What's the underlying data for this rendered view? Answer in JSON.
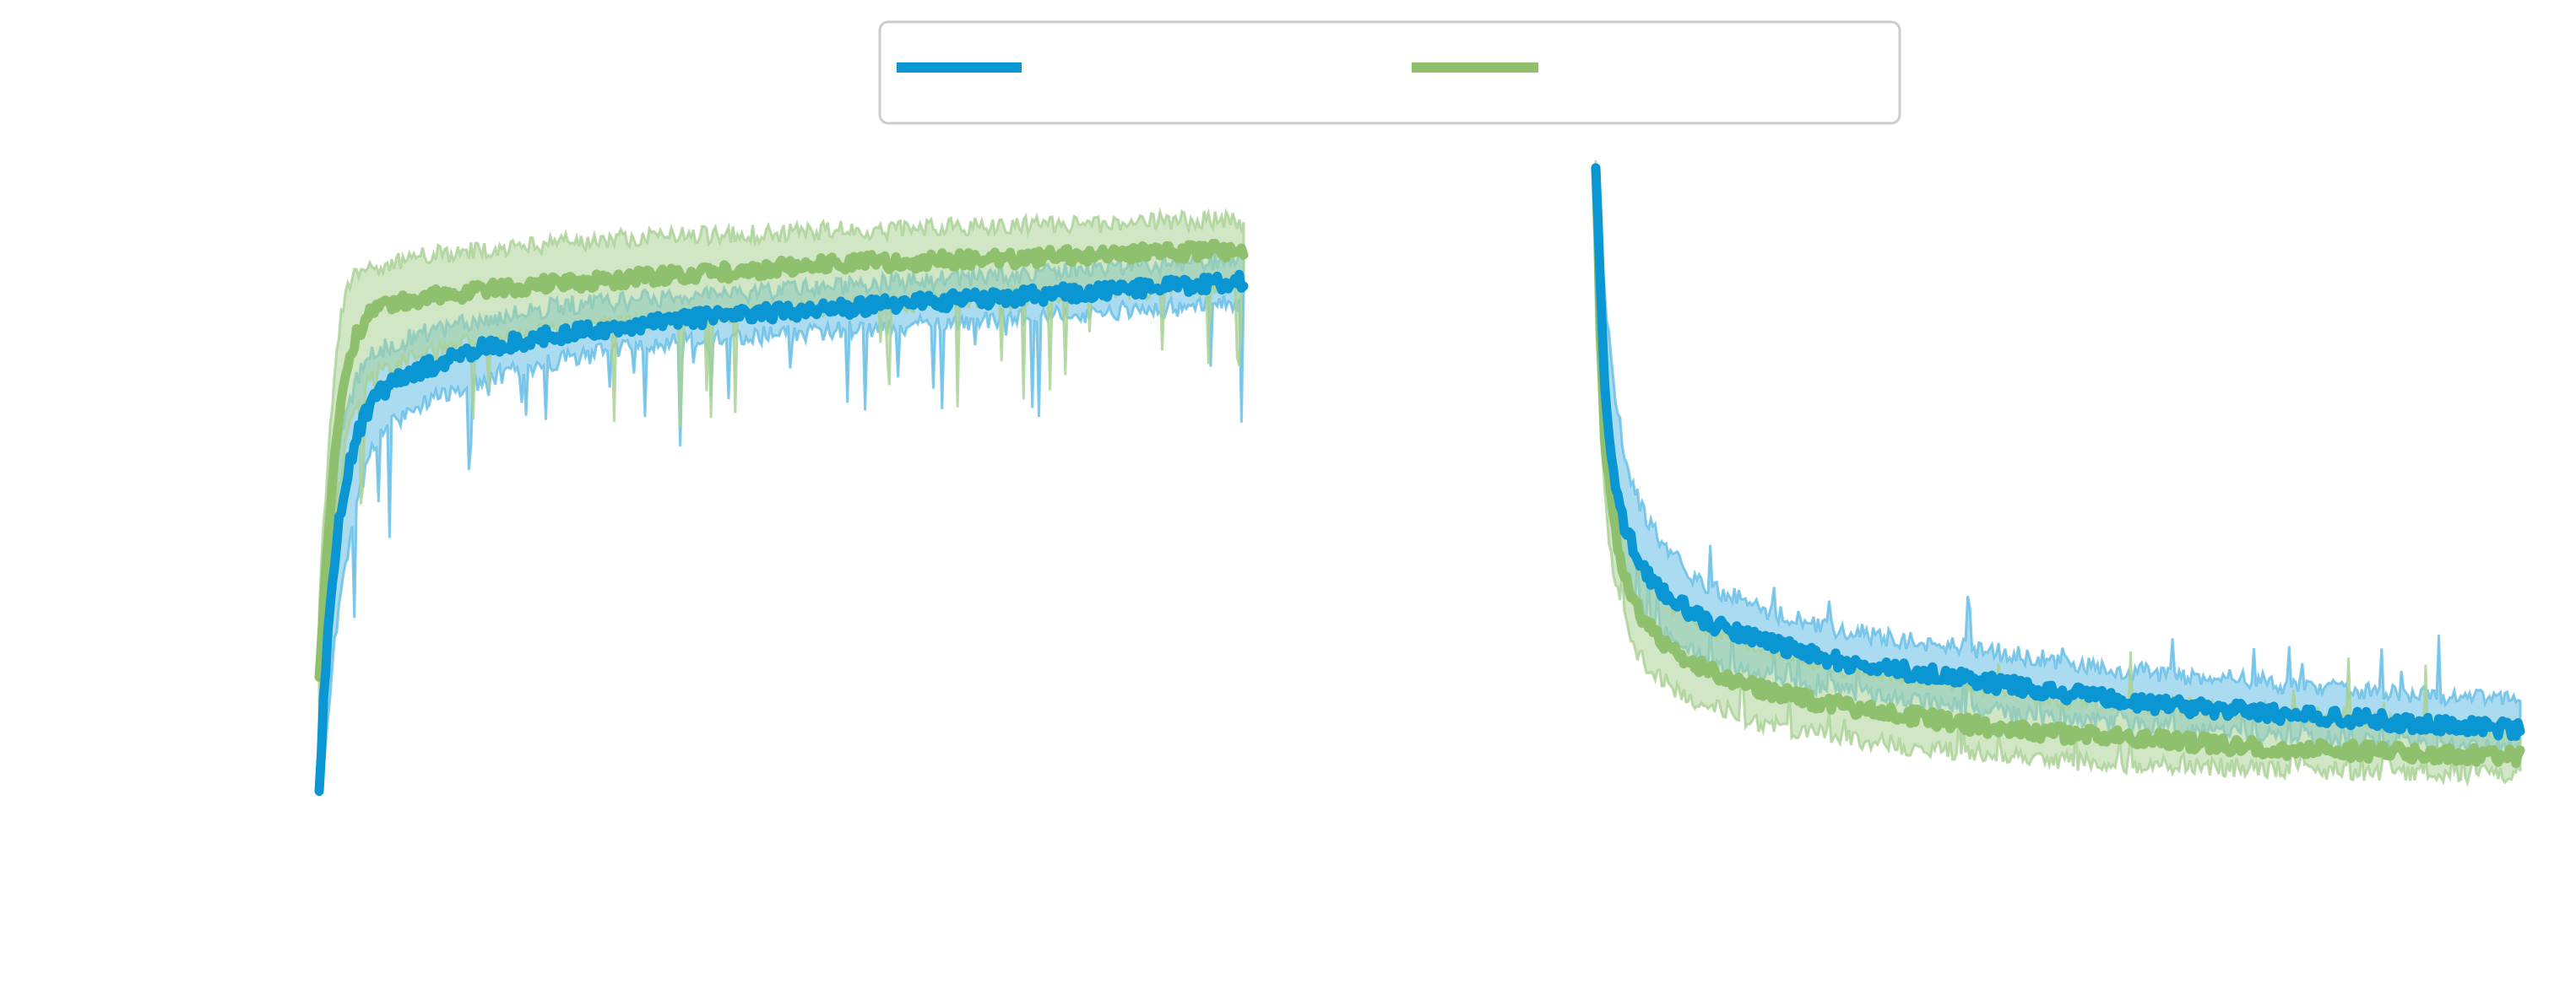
{
  "figure": {
    "legend": {
      "placement": "top-center",
      "entries": [
        {
          "name": "",
          "color": "#0a96d2"
        },
        {
          "name": "",
          "color": "#8fc06d"
        }
      ]
    },
    "colors": {
      "blue_line": "#0a96d2",
      "blue_band": "#64bde6",
      "green_line": "#8fc06d",
      "green_band": "#a9d195"
    }
  },
  "chart_data": [
    {
      "type": "line",
      "title": "",
      "xlabel": "",
      "ylabel": "",
      "grid": false,
      "xlim": [
        0,
        100
      ],
      "ylim": [
        0,
        1
      ],
      "x_tick_labels": [],
      "y_tick_labels": [],
      "series": [
        {
          "color": "#0a96d2",
          "band": true,
          "x": [
            0,
            0.5,
            1,
            2,
            3,
            4,
            5,
            6,
            8,
            10,
            12,
            15,
            18,
            22,
            26,
            30,
            35,
            40,
            45,
            50,
            55,
            60,
            65,
            70,
            75,
            80,
            85,
            90,
            95,
            100
          ],
          "mean": [
            0.0,
            0.15,
            0.27,
            0.42,
            0.5,
            0.56,
            0.6,
            0.625,
            0.65,
            0.665,
            0.675,
            0.69,
            0.705,
            0.715,
            0.725,
            0.733,
            0.74,
            0.75,
            0.755,
            0.76,
            0.765,
            0.77,
            0.775,
            0.78,
            0.785,
            0.79,
            0.795,
            0.8,
            0.805,
            0.81
          ],
          "lower": [
            0.0,
            0.05,
            0.14,
            0.28,
            0.37,
            0.45,
            0.51,
            0.55,
            0.585,
            0.605,
            0.62,
            0.64,
            0.655,
            0.67,
            0.685,
            0.695,
            0.705,
            0.715,
            0.72,
            0.725,
            0.73,
            0.735,
            0.74,
            0.745,
            0.75,
            0.755,
            0.76,
            0.765,
            0.77,
            0.775
          ],
          "upper": [
            0.0,
            0.28,
            0.4,
            0.54,
            0.61,
            0.65,
            0.68,
            0.695,
            0.71,
            0.72,
            0.73,
            0.74,
            0.75,
            0.76,
            0.77,
            0.775,
            0.78,
            0.785,
            0.79,
            0.795,
            0.8,
            0.805,
            0.81,
            0.815,
            0.82,
            0.825,
            0.83,
            0.835,
            0.84,
            0.845
          ]
        },
        {
          "color": "#8fc06d",
          "band": true,
          "x": [
            0,
            0.5,
            1,
            2,
            3,
            4,
            5,
            6,
            8,
            10,
            12,
            15,
            18,
            22,
            26,
            30,
            35,
            40,
            45,
            50,
            55,
            60,
            65,
            70,
            75,
            80,
            85,
            90,
            95,
            100
          ],
          "mean": [
            0.18,
            0.3,
            0.42,
            0.58,
            0.68,
            0.72,
            0.75,
            0.765,
            0.775,
            0.78,
            0.785,
            0.79,
            0.795,
            0.8,
            0.805,
            0.81,
            0.815,
            0.82,
            0.825,
            0.83,
            0.835,
            0.84,
            0.84,
            0.845,
            0.845,
            0.85,
            0.85,
            0.855,
            0.855,
            0.86
          ],
          "lower": [
            0.05,
            0.18,
            0.3,
            0.46,
            0.56,
            0.61,
            0.64,
            0.66,
            0.675,
            0.69,
            0.7,
            0.71,
            0.715,
            0.725,
            0.73,
            0.74,
            0.745,
            0.75,
            0.755,
            0.76,
            0.765,
            0.77,
            0.775,
            0.78,
            0.785,
            0.79,
            0.79,
            0.795,
            0.8,
            0.8
          ],
          "upper": [
            0.3,
            0.42,
            0.55,
            0.72,
            0.8,
            0.82,
            0.83,
            0.835,
            0.84,
            0.845,
            0.85,
            0.855,
            0.86,
            0.865,
            0.87,
            0.875,
            0.88,
            0.88,
            0.885,
            0.885,
            0.89,
            0.89,
            0.895,
            0.895,
            0.9,
            0.9,
            0.9,
            0.905,
            0.905,
            0.905
          ]
        }
      ]
    },
    {
      "type": "line",
      "title": "",
      "xlabel": "",
      "ylabel": "",
      "grid": false,
      "xlim": [
        0,
        100
      ],
      "ylim": [
        0,
        1
      ],
      "x_tick_labels": [],
      "y_tick_labels": [],
      "series": [
        {
          "color": "#0a96d2",
          "band": true,
          "x": [
            0,
            0.5,
            1,
            2,
            3,
            4,
            5,
            6,
            8,
            10,
            12,
            15,
            18,
            22,
            26,
            30,
            35,
            40,
            45,
            50,
            55,
            60,
            65,
            70,
            75,
            80,
            85,
            90,
            95,
            100
          ],
          "mean": [
            1.0,
            0.8,
            0.62,
            0.5,
            0.43,
            0.39,
            0.36,
            0.34,
            0.31,
            0.29,
            0.27,
            0.255,
            0.24,
            0.225,
            0.21,
            0.2,
            0.19,
            0.18,
            0.17,
            0.16,
            0.15,
            0.14,
            0.135,
            0.13,
            0.125,
            0.12,
            0.115,
            0.11,
            0.105,
            0.1
          ],
          "lower": [
            0.95,
            0.7,
            0.52,
            0.41,
            0.35,
            0.31,
            0.29,
            0.27,
            0.25,
            0.23,
            0.21,
            0.2,
            0.19,
            0.175,
            0.165,
            0.155,
            0.145,
            0.135,
            0.125,
            0.12,
            0.115,
            0.105,
            0.1,
            0.095,
            0.09,
            0.085,
            0.08,
            0.075,
            0.075,
            0.07
          ],
          "upper": [
            1.0,
            0.9,
            0.78,
            0.64,
            0.55,
            0.49,
            0.45,
            0.42,
            0.38,
            0.35,
            0.33,
            0.31,
            0.29,
            0.275,
            0.26,
            0.25,
            0.24,
            0.23,
            0.22,
            0.21,
            0.2,
            0.19,
            0.185,
            0.18,
            0.17,
            0.165,
            0.16,
            0.155,
            0.15,
            0.145
          ]
        },
        {
          "color": "#8fc06d",
          "band": true,
          "x": [
            0,
            0.5,
            1,
            2,
            3,
            4,
            5,
            6,
            8,
            10,
            12,
            15,
            18,
            22,
            26,
            30,
            35,
            40,
            45,
            50,
            55,
            60,
            65,
            70,
            75,
            80,
            85,
            90,
            95,
            100
          ],
          "mean": [
            1.0,
            0.72,
            0.55,
            0.42,
            0.35,
            0.31,
            0.28,
            0.26,
            0.23,
            0.21,
            0.195,
            0.18,
            0.165,
            0.15,
            0.14,
            0.13,
            0.12,
            0.11,
            0.1,
            0.095,
            0.09,
            0.085,
            0.08,
            0.075,
            0.07,
            0.068,
            0.065,
            0.062,
            0.06,
            0.058
          ],
          "lower": [
            0.95,
            0.62,
            0.46,
            0.34,
            0.28,
            0.24,
            0.21,
            0.19,
            0.17,
            0.15,
            0.14,
            0.125,
            0.11,
            0.1,
            0.09,
            0.08,
            0.072,
            0.065,
            0.058,
            0.052,
            0.048,
            0.045,
            0.042,
            0.04,
            0.038,
            0.036,
            0.034,
            0.032,
            0.03,
            0.03
          ],
          "upper": [
            1.0,
            0.82,
            0.66,
            0.52,
            0.44,
            0.39,
            0.36,
            0.34,
            0.3,
            0.28,
            0.26,
            0.245,
            0.23,
            0.215,
            0.2,
            0.19,
            0.18,
            0.17,
            0.16,
            0.15,
            0.145,
            0.14,
            0.135,
            0.13,
            0.125,
            0.12,
            0.115,
            0.11,
            0.105,
            0.1
          ]
        }
      ]
    }
  ]
}
